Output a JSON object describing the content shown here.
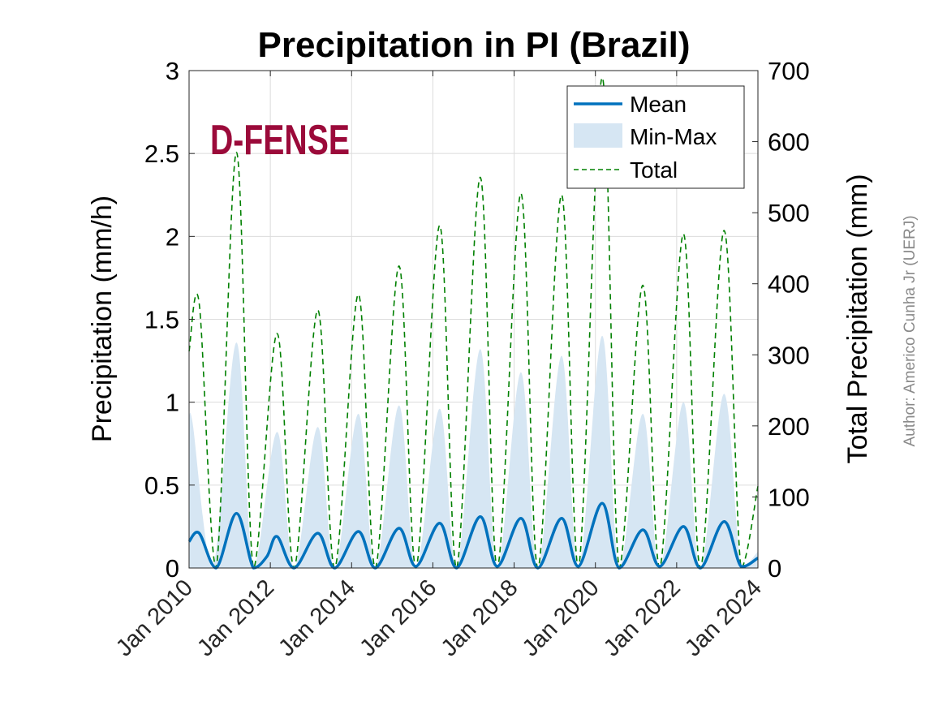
{
  "chart_data": {
    "type": "line",
    "title": "Precipitation in PI (Brazil)",
    "xlabel": "",
    "ylabel_left": "Precipitation (mm/h)",
    "ylabel_right": "Total Precipitation (mm)",
    "xlim": [
      "2010-01",
      "2024-01"
    ],
    "ylim_left": [
      0,
      3
    ],
    "ylim_right": [
      0,
      700
    ],
    "x_ticks": [
      "Jan 2010",
      "Jan 2012",
      "Jan 2014",
      "Jan 2016",
      "Jan 2018",
      "Jan 2020",
      "Jan 2022",
      "Jan 2024"
    ],
    "y_ticks_left": [
      "0",
      "0.5",
      "1",
      "1.5",
      "2",
      "2.5",
      "3"
    ],
    "y_ticks_right": [
      "0",
      "100",
      "200",
      "300",
      "400",
      "500",
      "600",
      "700"
    ],
    "grid": true,
    "legend_position": "top-right",
    "legend": [
      "Mean",
      "Min-Max",
      "Total"
    ],
    "series": [
      {
        "name": "Mean",
        "axis": "left",
        "color": "#0072BD",
        "x": [
          "2010-01",
          "2010-04",
          "2010-09",
          "2011-03",
          "2011-08",
          "2011-12",
          "2012-03",
          "2012-08",
          "2013-03",
          "2013-08",
          "2014-03",
          "2014-08",
          "2015-03",
          "2015-08",
          "2016-03",
          "2016-08",
          "2017-03",
          "2017-08",
          "2018-03",
          "2018-08",
          "2019-03",
          "2019-08",
          "2020-03",
          "2020-08",
          "2021-03",
          "2021-08",
          "2022-03",
          "2022-08",
          "2023-03",
          "2023-08",
          "2024-01"
        ],
        "values": [
          0.16,
          0.21,
          0.0,
          0.33,
          0.0,
          0.07,
          0.19,
          0.0,
          0.21,
          0.0,
          0.22,
          0.0,
          0.24,
          0.01,
          0.27,
          0.0,
          0.31,
          0.01,
          0.3,
          0.0,
          0.3,
          0.01,
          0.39,
          0.0,
          0.23,
          0.01,
          0.25,
          0.0,
          0.28,
          0.01,
          0.06
        ]
      },
      {
        "name": "Min-Max",
        "axis": "left",
        "color": "#D6E6F3",
        "x": [
          "2010-01",
          "2010-02",
          "2010-08",
          "2011-03",
          "2011-08",
          "2012-03",
          "2012-08",
          "2013-03",
          "2013-08",
          "2014-03",
          "2014-08",
          "2015-03",
          "2015-08",
          "2016-03",
          "2016-08",
          "2017-03",
          "2017-08",
          "2018-03",
          "2018-08",
          "2019-03",
          "2019-08",
          "2020-03",
          "2020-08",
          "2021-03",
          "2021-08",
          "2022-03",
          "2022-08",
          "2023-03",
          "2023-08",
          "2024-01"
        ],
        "values": [
          0.85,
          0.88,
          0.0,
          1.36,
          0.0,
          0.82,
          0.0,
          0.85,
          0.0,
          0.93,
          0.0,
          0.98,
          0.0,
          0.96,
          0.0,
          1.32,
          0.0,
          1.18,
          0.0,
          1.28,
          0.0,
          1.4,
          0.0,
          0.93,
          0.0,
          1.0,
          0.0,
          1.05,
          0.0,
          0.1
        ]
      },
      {
        "name": "Total",
        "axis": "right",
        "color": "#008000",
        "x": [
          "2010-01",
          "2010-04",
          "2010-09",
          "2011-03",
          "2011-08",
          "2012-03",
          "2012-08",
          "2013-03",
          "2013-08",
          "2014-03",
          "2014-08",
          "2015-03",
          "2015-08",
          "2016-03",
          "2016-08",
          "2017-03",
          "2017-08",
          "2018-03",
          "2018-08",
          "2019-03",
          "2019-08",
          "2020-03",
          "2020-08",
          "2021-03",
          "2021-08",
          "2022-03",
          "2022-08",
          "2023-03",
          "2023-08",
          "2024-01"
        ],
        "values": [
          305,
          372,
          0,
          585,
          0,
          330,
          0,
          363,
          0,
          385,
          0,
          425,
          0,
          482,
          0,
          550,
          0,
          527,
          0,
          525,
          0,
          690,
          0,
          398,
          0,
          470,
          0,
          475,
          0,
          115
        ]
      }
    ],
    "annotations": [
      "D-FENSE",
      "Author: Americo Cunha Jr (UERJ)"
    ]
  }
}
